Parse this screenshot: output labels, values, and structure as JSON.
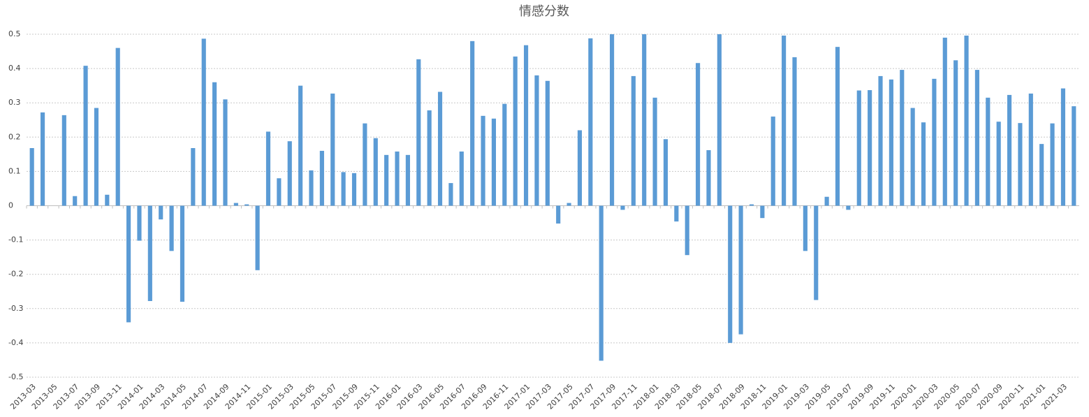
{
  "chart_data": {
    "type": "bar",
    "title": "情感分数",
    "categories": [
      "2013-03",
      null,
      "2013-05",
      null,
      "2013-07",
      null,
      "2013-09",
      null,
      "2013-11",
      null,
      "2014-01",
      null,
      "2014-03",
      null,
      "2014-05",
      null,
      "2014-07",
      null,
      "2014-09",
      null,
      "2014-11",
      null,
      "2015-01",
      null,
      "2015-03",
      null,
      "2015-05",
      null,
      "2015-07",
      null,
      "2015-09",
      null,
      "2015-11",
      null,
      "2016-01",
      null,
      "2016-03",
      null,
      "2016-05",
      null,
      "2016-07",
      null,
      "2016-09",
      null,
      "2016-11",
      null,
      "2017-01",
      null,
      "2017-03",
      null,
      "2017-05",
      null,
      "2017-07",
      null,
      "2017-09",
      null,
      "2017-11",
      null,
      "2018-01",
      null,
      "2018-03",
      null,
      "2018-05",
      null,
      "2018-07",
      null,
      "2018-09",
      null,
      "2018-11",
      null,
      "2019-01",
      null,
      "2019-03",
      null,
      "2019-05",
      null,
      "2019-07",
      null,
      "2019-09",
      null,
      "2019-11",
      null,
      "2020-01",
      null,
      "2020-03",
      null,
      "2020-05",
      null,
      "2020-07",
      null,
      "2020-09",
      null,
      "2020-11",
      null,
      "2021-01",
      null,
      "2021-03",
      null
    ],
    "values": [
      0.168,
      0.272,
      null,
      0.264,
      0.028,
      0.408,
      0.285,
      0.032,
      0.46,
      -0.34,
      -0.102,
      -0.278,
      -0.04,
      -0.132,
      -0.28,
      0.168,
      0.487,
      0.36,
      0.31,
      0.008,
      0.004,
      -0.188,
      0.216,
      0.08,
      0.188,
      0.35,
      0.103,
      0.16,
      0.327,
      0.098,
      0.095,
      0.24,
      0.197,
      0.148,
      0.158,
      0.148,
      0.427,
      0.278,
      0.332,
      0.066,
      0.158,
      0.48,
      0.262,
      0.254,
      0.297,
      0.435,
      0.468,
      0.38,
      0.364,
      -0.052,
      0.008,
      0.22,
      0.488,
      -0.452,
      0.5,
      -0.012,
      0.378,
      0.5,
      0.315,
      0.194,
      -0.046,
      -0.144,
      0.416,
      0.162,
      0.5,
      -0.4,
      -0.375,
      0.004,
      -0.036,
      0.26,
      0.496,
      0.433,
      -0.132,
      -0.275,
      0.026,
      0.463,
      -0.012,
      0.336,
      0.337,
      0.378,
      0.368,
      0.396,
      0.285,
      0.243,
      0.37,
      0.49,
      0.424,
      0.496,
      0.396,
      0.315,
      0.245,
      0.323,
      0.241,
      0.327,
      0.18,
      0.24,
      0.342,
      0.29
    ],
    "color": "#5b9bd5",
    "ylim": [
      -0.5,
      0.5
    ],
    "yticks": [
      -0.5,
      -0.4,
      -0.3,
      -0.2,
      -0.1,
      0,
      0.1,
      0.2,
      0.3,
      0.4,
      0.5
    ],
    "grid": true
  }
}
